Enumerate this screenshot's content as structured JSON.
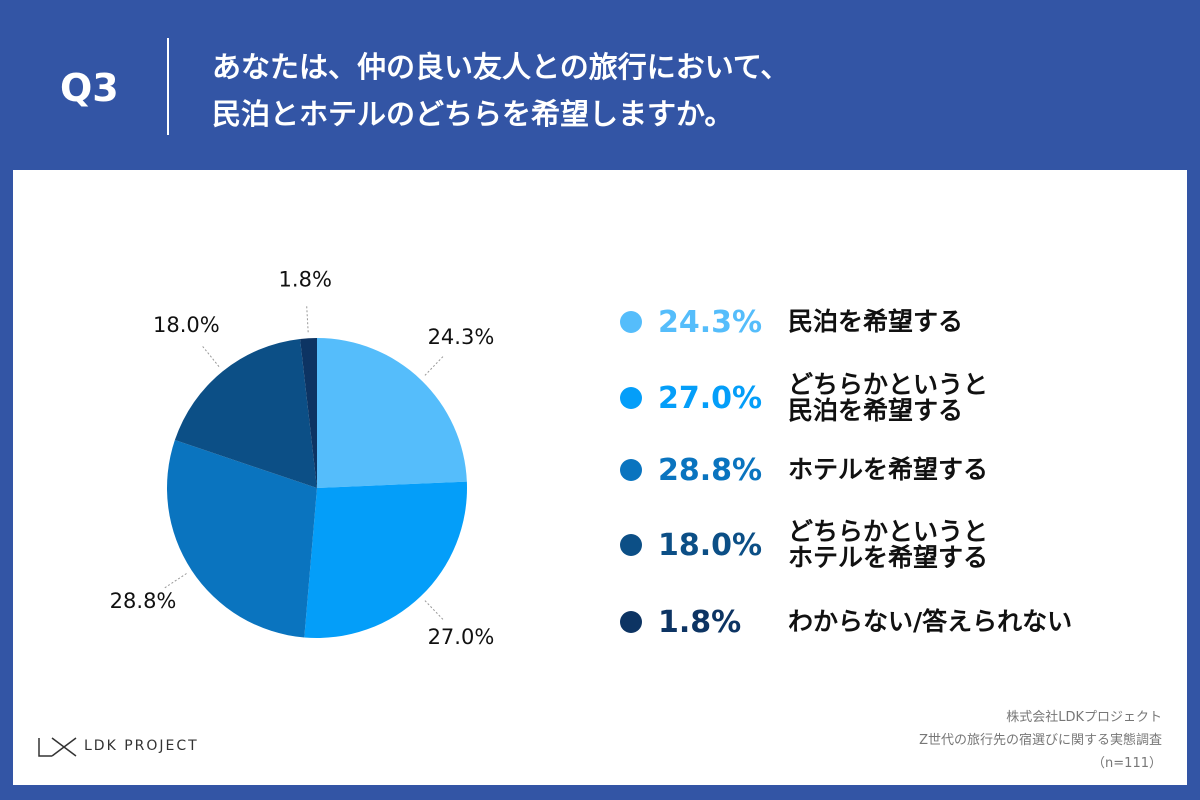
{
  "header": {
    "question": "Q3",
    "title_lines": [
      "あなたは、仲の良い友人との旅行において、",
      "民泊とホテルのどちらを希望しますか。"
    ]
  },
  "chart_data": {
    "type": "pie",
    "categories": [
      "民泊を希望する",
      "どちらかというと\n民泊を希望する",
      "ホテルを希望する",
      "どちらかというと\nホテルを希望する",
      "わからない/答えられない"
    ],
    "values": [
      24.3,
      27.0,
      28.8,
      18.0,
      1.8
    ],
    "value_labels": [
      "24.3%",
      "27.0%",
      "28.8%",
      "18.0%",
      "1.8%"
    ],
    "colors": [
      "#55bdfb",
      "#049ef9",
      "#0a74bf",
      "#0c4f86",
      "#0d3463"
    ]
  },
  "footer": {
    "logo": "LDK PROJECT",
    "source_lines": [
      "株式会社LDKプロジェクト",
      "Z世代の旅行先の宿選びに関する実態調査",
      "（n=111）"
    ]
  }
}
